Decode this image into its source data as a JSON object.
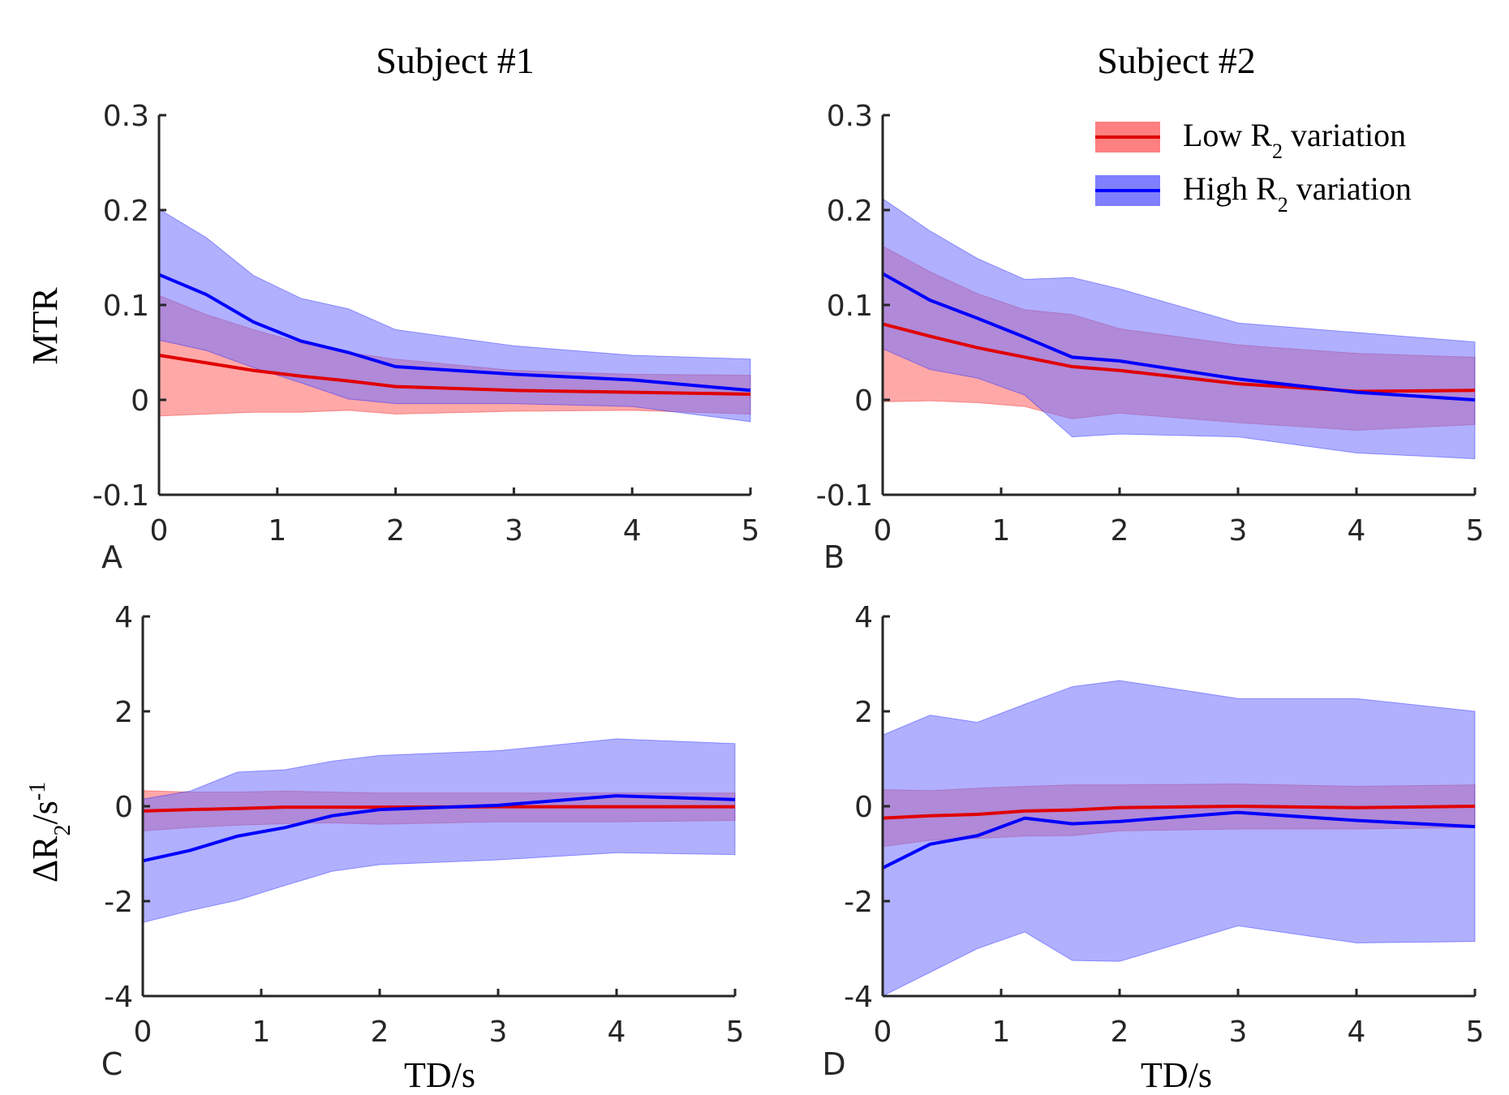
{
  "chart_data": [
    {
      "type": "area",
      "panel_label": "A",
      "title": "Subject #1",
      "xlabel": "",
      "ylabel": "MTR",
      "xlim": [
        0,
        5
      ],
      "ylim": [
        -0.1,
        0.3
      ],
      "xticks": [
        "0",
        "1",
        "2",
        "3",
        "4",
        "5"
      ],
      "yticks": [
        "-0.1",
        "0",
        "0.1",
        "0.2",
        "0.3"
      ],
      "x": [
        0,
        0.4,
        0.8,
        1.2,
        1.6,
        2,
        3,
        4,
        5
      ],
      "series": [
        {
          "name": "Low R2 variation",
          "mean": [
            0.047,
            0.039,
            0.031,
            0.025,
            0.02,
            0.014,
            0.01,
            0.008,
            0.006
          ],
          "upper": [
            0.11,
            0.09,
            0.074,
            0.06,
            0.05,
            0.043,
            0.031,
            0.027,
            0.026
          ],
          "lower": [
            -0.017,
            -0.015,
            -0.013,
            -0.013,
            -0.011,
            -0.015,
            -0.012,
            -0.011,
            -0.015
          ]
        },
        {
          "name": "High R2 variation",
          "mean": [
            0.132,
            0.111,
            0.082,
            0.062,
            0.05,
            0.035,
            0.027,
            0.021,
            0.01
          ],
          "upper": [
            0.201,
            0.171,
            0.131,
            0.107,
            0.096,
            0.074,
            0.057,
            0.047,
            0.043
          ],
          "lower": [
            0.063,
            0.052,
            0.034,
            0.018,
            0.001,
            -0.004,
            -0.004,
            -0.007,
            -0.023
          ]
        }
      ]
    },
    {
      "type": "area",
      "panel_label": "B",
      "title": "Subject #2",
      "xlabel": "",
      "ylabel": "",
      "xlim": [
        0,
        5
      ],
      "ylim": [
        -0.1,
        0.3
      ],
      "xticks": [
        "0",
        "1",
        "2",
        "3",
        "4",
        "5"
      ],
      "yticks": [
        "-0.1",
        "0",
        "0.1",
        "0.2",
        "0.3"
      ],
      "x": [
        0,
        0.4,
        0.8,
        1.2,
        1.6,
        2,
        3,
        4,
        5
      ],
      "legend": {
        "placement": "top-right",
        "entries": [
          "Low R",
          "High R"
        ],
        "subscript": "2",
        "suffix": " variation"
      },
      "series": [
        {
          "name": "Low R2 variation",
          "mean": [
            0.08,
            0.067,
            0.055,
            0.045,
            0.035,
            0.031,
            0.017,
            0.009,
            0.01
          ],
          "upper": [
            0.162,
            0.135,
            0.112,
            0.095,
            0.09,
            0.075,
            0.058,
            0.049,
            0.045
          ],
          "lower": [
            -0.002,
            -0.001,
            -0.003,
            -0.007,
            -0.02,
            -0.014,
            -0.024,
            -0.032,
            -0.026
          ]
        },
        {
          "name": "High R2 variation",
          "mean": [
            0.133,
            0.105,
            0.086,
            0.066,
            0.045,
            0.041,
            0.022,
            0.008,
            0.0
          ],
          "upper": [
            0.212,
            0.178,
            0.149,
            0.127,
            0.129,
            0.117,
            0.081,
            0.071,
            0.061
          ],
          "lower": [
            0.054,
            0.032,
            0.023,
            0.005,
            -0.039,
            -0.036,
            -0.039,
            -0.056,
            -0.062
          ]
        }
      ]
    },
    {
      "type": "area",
      "panel_label": "C",
      "title": "",
      "xlabel": "TD/s",
      "ylabel": "ΔR2/s-1",
      "xlim": [
        0,
        5
      ],
      "ylim": [
        -4,
        4
      ],
      "xticks": [
        "0",
        "1",
        "2",
        "3",
        "4",
        "5"
      ],
      "yticks": [
        "-4",
        "-2",
        "0",
        "2",
        "4"
      ],
      "x": [
        0,
        0.4,
        0.8,
        1.2,
        1.6,
        2,
        3,
        4,
        5
      ],
      "series": [
        {
          "name": "Low R2 variation",
          "mean": [
            -0.1,
            -0.07,
            -0.05,
            -0.02,
            -0.02,
            -0.02,
            -0.01,
            -0.01,
            -0.01
          ],
          "upper": [
            0.33,
            0.3,
            0.3,
            0.32,
            0.3,
            0.28,
            0.28,
            0.28,
            0.28
          ],
          "lower": [
            -0.52,
            -0.45,
            -0.4,
            -0.37,
            -0.35,
            -0.38,
            -0.33,
            -0.33,
            -0.3
          ]
        },
        {
          "name": "High R2 variation",
          "mean": [
            -1.15,
            -0.93,
            -0.63,
            -0.45,
            -0.2,
            -0.07,
            0.02,
            0.22,
            0.14
          ],
          "upper": [
            0.15,
            0.32,
            0.72,
            0.77,
            0.95,
            1.07,
            1.17,
            1.42,
            1.32
          ],
          "lower": [
            -2.45,
            -2.2,
            -1.98,
            -1.67,
            -1.37,
            -1.23,
            -1.13,
            -0.98,
            -1.02
          ]
        }
      ]
    },
    {
      "type": "area",
      "panel_label": "D",
      "title": "",
      "xlabel": "TD/s",
      "ylabel": "",
      "xlim": [
        0,
        5
      ],
      "ylim": [
        -4,
        4
      ],
      "xticks": [
        "0",
        "1",
        "2",
        "3",
        "4",
        "5"
      ],
      "yticks": [
        "-4",
        "-2",
        "0",
        "2",
        "4"
      ],
      "x": [
        0,
        0.4,
        0.8,
        1.2,
        1.6,
        2,
        3,
        4,
        5
      ],
      "series": [
        {
          "name": "Low R2 variation",
          "mean": [
            -0.25,
            -0.2,
            -0.17,
            -0.1,
            -0.08,
            -0.03,
            0.0,
            -0.03,
            0.0
          ],
          "upper": [
            0.35,
            0.33,
            0.38,
            0.42,
            0.45,
            0.45,
            0.47,
            0.42,
            0.45
          ],
          "lower": [
            -0.85,
            -0.72,
            -0.68,
            -0.63,
            -0.62,
            -0.52,
            -0.48,
            -0.48,
            -0.45
          ]
        },
        {
          "name": "High R2 variation",
          "mean": [
            -1.3,
            -0.8,
            -0.62,
            -0.25,
            -0.37,
            -0.32,
            -0.13,
            -0.3,
            -0.43
          ],
          "upper": [
            1.5,
            1.92,
            1.77,
            2.15,
            2.52,
            2.65,
            2.27,
            2.27,
            2.0
          ],
          "lower": [
            -4.0,
            -3.5,
            -3.0,
            -2.65,
            -3.25,
            -3.27,
            -2.52,
            -2.88,
            -2.85
          ]
        }
      ]
    }
  ],
  "colors": {
    "low_line": "#e00000",
    "low_fill": "#ff6060",
    "high_line": "#0000ff",
    "high_fill": "#6f6fff"
  }
}
